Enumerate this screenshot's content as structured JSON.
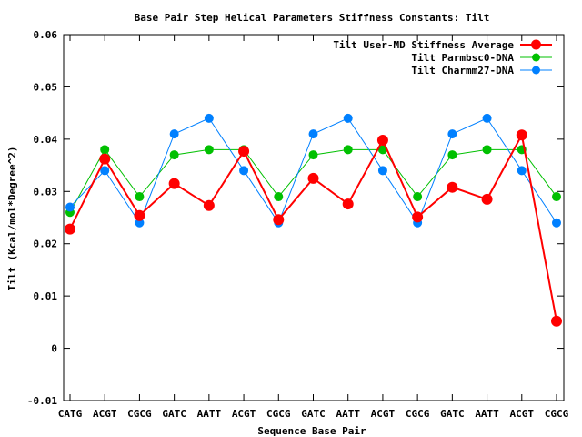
{
  "chart_data": {
    "type": "line",
    "title": "Base Pair Step Helical Parameters Stiffness Constants: Tilt",
    "xlabel": "Sequence Base Pair",
    "ylabel": "Tilt (Kcal/mol*Degree^2)",
    "ylim": [
      -0.01,
      0.06
    ],
    "yticks": [
      "-0.01",
      "0",
      "0.01",
      "0.02",
      "0.03",
      "0.04",
      "0.05",
      "0.06"
    ],
    "categories": [
      "CATG",
      "ACGT",
      "CGCG",
      "GATC",
      "AATT",
      "ACGT",
      "CGCG",
      "GATC",
      "AATT",
      "ACGT",
      "CGCG",
      "GATC",
      "AATT",
      "ACGT",
      "CGCG"
    ],
    "grid": false,
    "legend_position": "top-right",
    "series": [
      {
        "name": "Tilt User-MD Stiffness Average",
        "color": "#ff0000",
        "values": [
          0.0228,
          0.0362,
          0.0254,
          0.0315,
          0.0273,
          0.0377,
          0.0246,
          0.0325,
          0.0276,
          0.0398,
          0.0251,
          0.0308,
          0.0285,
          0.0408,
          0.0052
        ]
      },
      {
        "name": "Tilt Parmbsc0-DNA",
        "color": "#00c000",
        "values": [
          0.026,
          0.038,
          0.029,
          0.037,
          0.038,
          0.038,
          0.029,
          0.037,
          0.038,
          0.038,
          0.029,
          0.037,
          0.038,
          0.038,
          0.029
        ]
      },
      {
        "name": "Tilt Charmm27-DNA",
        "color": "#0080ff",
        "values": [
          0.027,
          0.034,
          0.024,
          0.041,
          0.044,
          0.034,
          0.024,
          0.041,
          0.044,
          0.034,
          0.024,
          0.041,
          0.044,
          0.034,
          0.024
        ]
      }
    ]
  }
}
